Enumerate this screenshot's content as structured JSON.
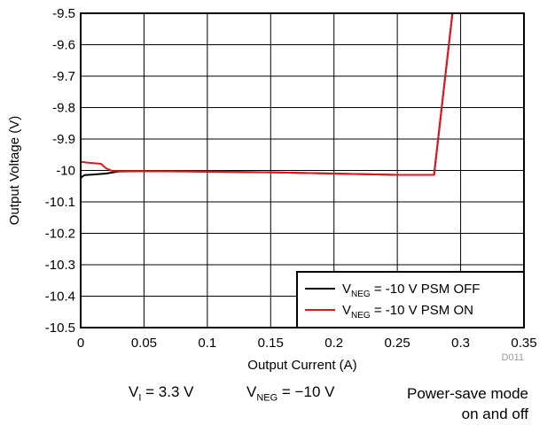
{
  "chart_data": {
    "type": "line",
    "xlabel": "Output Current (A)",
    "ylabel": "Output Voltage (V)",
    "xlim": [
      0,
      0.35
    ],
    "ylim": [
      -10.5,
      -9.5
    ],
    "xticks": [
      "0",
      "0.05",
      "0.1",
      "0.15",
      "0.2",
      "0.25",
      "0.3",
      "0.35"
    ],
    "yticks": [
      "-9.5",
      "-9.6",
      "-9.7",
      "-9.8",
      "-9.9",
      "-10",
      "-10.1",
      "-10.2",
      "-10.3",
      "-10.4",
      "-10.5"
    ],
    "grid": true,
    "legend_position": "bottom-right",
    "series": [
      {
        "name": "V_NEG = -10 V PSM OFF",
        "name_main": "V",
        "name_sub": "NEG",
        "name_rest": " = -10 V PSM OFF",
        "color": "#000000",
        "x": [
          0.0,
          0.001,
          0.003,
          0.01,
          0.02,
          0.03,
          0.05,
          0.1,
          0.15,
          0.2,
          0.25,
          0.279,
          0.2935
        ],
        "y": [
          -10.025,
          -10.02,
          -10.015,
          -10.013,
          -10.01,
          -10.003,
          -10.002,
          -10.004,
          -10.006,
          -10.01,
          -10.014,
          -10.014,
          -9.5
        ]
      },
      {
        "name": "V_NEG = -10 V PSM ON",
        "name_main": "V",
        "name_sub": "NEG",
        "name_rest": " = -10 V PSM ON",
        "color": "#e8141b",
        "x": [
          0.0,
          0.005,
          0.01,
          0.016,
          0.02,
          0.025,
          0.03,
          0.05,
          0.1,
          0.15,
          0.2,
          0.25,
          0.279,
          0.2935
        ],
        "y": [
          -9.972,
          -9.975,
          -9.977,
          -9.979,
          -9.993,
          -10.002,
          -10.002,
          -10.002,
          -10.003,
          -10.006,
          -10.01,
          -10.014,
          -10.014,
          -9.5
        ]
      }
    ],
    "annotation": "D011"
  },
  "conditions": {
    "vi_main": "V",
    "vi_sub": "I",
    "vi_rest": " = 3.3 V",
    "vneg_main": "V",
    "vneg_sub": "NEG",
    "vneg_rest": " = −10 V",
    "mode_line1": "Power-save mode",
    "mode_line2": "on and off"
  }
}
